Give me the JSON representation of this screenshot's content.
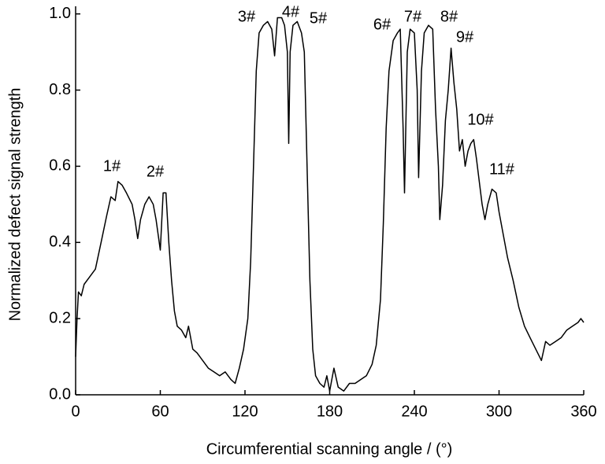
{
  "chart_data": {
    "type": "line",
    "x_label": "Circumferential scanning angle / (°)",
    "y_label": "Normalized defect signal strength",
    "xlim": [
      0,
      360
    ],
    "xticks": [
      0,
      60,
      120,
      180,
      240,
      300,
      360
    ],
    "ylim": [
      0,
      1.02
    ],
    "yticks": [
      {
        "value": 0,
        "label": "0.0"
      },
      0.2,
      0.4,
      0.6,
      0.8,
      {
        "value": 1,
        "label": "1.0"
      }
    ],
    "grid": false,
    "annotations": [
      "1#",
      "2#",
      "3#",
      "4#",
      "5#",
      "6#",
      "7#",
      "8#",
      "9#",
      "10#",
      "11#"
    ],
    "series": [
      {
        "color": "#000000",
        "x": [
          0,
          1,
          2,
          4,
          6,
          10,
          14,
          18,
          22,
          25,
          28,
          30,
          33,
          36,
          40,
          42,
          44,
          46,
          49,
          52,
          55,
          57,
          60,
          62,
          64,
          66,
          68,
          70,
          72,
          75,
          78,
          80,
          83,
          86,
          90,
          94,
          98,
          102,
          106,
          110,
          113,
          116,
          119,
          122,
          124,
          126,
          128,
          130,
          133,
          136,
          139,
          141,
          143,
          146,
          148,
          150,
          151,
          152,
          154,
          157,
          160,
          162,
          164,
          166,
          168,
          170,
          173,
          176,
          178,
          180,
          183,
          186,
          190,
          194,
          198,
          202,
          206,
          210,
          213,
          216,
          218,
          220,
          222,
          225,
          228,
          230,
          232,
          233,
          235,
          237,
          240,
          242,
          243,
          245,
          247,
          250,
          253,
          255,
          257,
          258,
          260,
          262,
          264,
          266,
          268,
          270,
          272,
          274,
          276,
          278,
          280,
          282,
          284,
          286,
          288,
          290,
          292,
          295,
          298,
          300,
          303,
          306,
          310,
          314,
          318,
          322,
          326,
          330,
          333,
          336,
          340,
          344,
          348,
          352,
          356,
          358,
          360
        ],
        "values": [
          0.1,
          0.2,
          0.27,
          0.26,
          0.29,
          0.31,
          0.33,
          0.4,
          0.47,
          0.52,
          0.51,
          0.56,
          0.55,
          0.53,
          0.5,
          0.46,
          0.41,
          0.46,
          0.5,
          0.52,
          0.5,
          0.46,
          0.38,
          0.53,
          0.53,
          0.4,
          0.3,
          0.22,
          0.18,
          0.17,
          0.15,
          0.18,
          0.12,
          0.11,
          0.09,
          0.07,
          0.06,
          0.05,
          0.06,
          0.04,
          0.03,
          0.07,
          0.12,
          0.2,
          0.35,
          0.6,
          0.85,
          0.95,
          0.97,
          0.98,
          0.96,
          0.89,
          0.99,
          0.99,
          0.97,
          0.9,
          0.66,
          0.9,
          0.97,
          0.98,
          0.95,
          0.9,
          0.6,
          0.3,
          0.12,
          0.05,
          0.03,
          0.02,
          0.05,
          0.01,
          0.07,
          0.02,
          0.01,
          0.03,
          0.03,
          0.04,
          0.05,
          0.08,
          0.13,
          0.25,
          0.45,
          0.7,
          0.85,
          0.93,
          0.95,
          0.96,
          0.7,
          0.53,
          0.9,
          0.96,
          0.95,
          0.8,
          0.57,
          0.85,
          0.95,
          0.97,
          0.96,
          0.75,
          0.6,
          0.46,
          0.55,
          0.72,
          0.8,
          0.91,
          0.82,
          0.75,
          0.64,
          0.67,
          0.6,
          0.64,
          0.66,
          0.67,
          0.62,
          0.56,
          0.5,
          0.46,
          0.5,
          0.54,
          0.53,
          0.48,
          0.42,
          0.36,
          0.3,
          0.23,
          0.18,
          0.15,
          0.12,
          0.09,
          0.14,
          0.13,
          0.14,
          0.15,
          0.17,
          0.18,
          0.19,
          0.2,
          0.19
        ]
      }
    ]
  }
}
